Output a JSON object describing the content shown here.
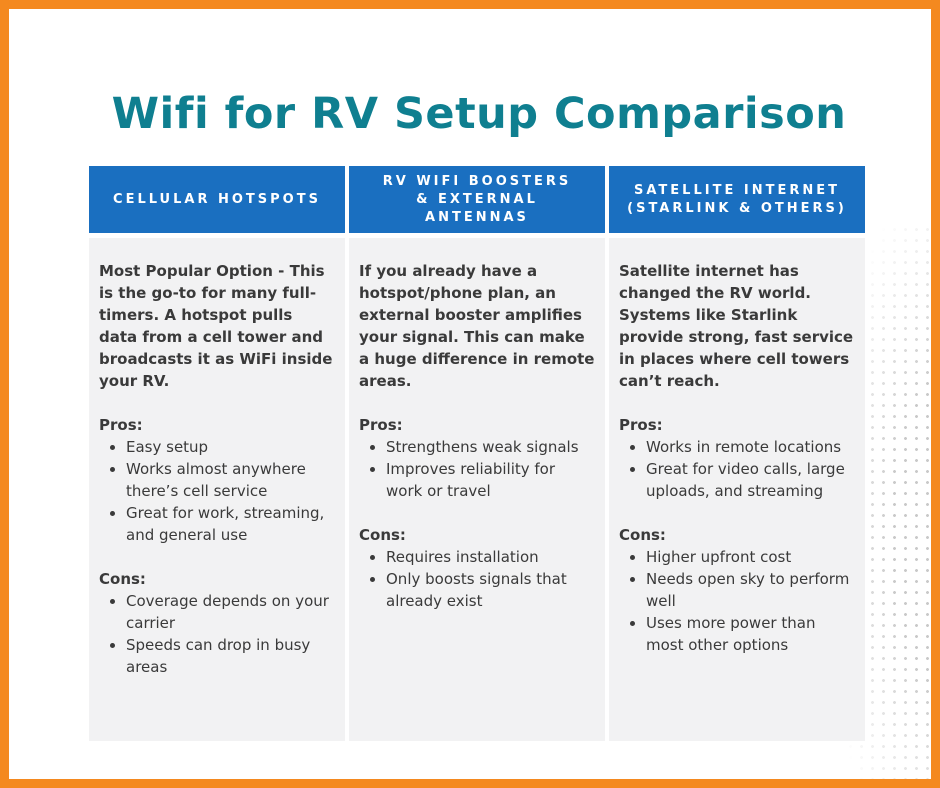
{
  "title": "Wifi for RV Setup Comparison",
  "colors": {
    "border": "#F4891F",
    "title": "#0F7F90",
    "header": "#1A6FC0",
    "body_bg": "#F2F2F3"
  },
  "columns": [
    {
      "header": [
        "CELLULAR HOTSPOTS"
      ],
      "intro": "Most Popular Option - This is the go-to for many full-timers. A hotspot pulls data from a cell tower and broadcasts it as WiFi inside your RV.",
      "pros_label": "Pros:",
      "pros": [
        "Easy setup",
        "Works almost anywhere there’s cell service",
        "Great for work, streaming, and general use"
      ],
      "cons_label": "Cons:",
      "cons": [
        "Coverage depends on your carrier",
        "Speeds can drop in busy areas"
      ]
    },
    {
      "header": [
        "RV WIFI BOOSTERS",
        "& EXTERNAL",
        "ANTENNAS"
      ],
      "intro": "If you already have a hotspot/phone plan, an external booster amplifies your signal. This can make a huge difference in remote areas.",
      "pros_label": "Pros:",
      "pros": [
        "Strengthens weak signals",
        "Improves reliability for work or travel"
      ],
      "cons_label": "Cons:",
      "cons": [
        "Requires installation",
        "Only boosts signals that already exist"
      ]
    },
    {
      "header": [
        "SATELLITE INTERNET",
        "(STARLINK & OTHERS)"
      ],
      "intro": "Satellite internet has changed the RV world. Systems like Starlink provide strong, fast service in places where cell towers can’t reach.",
      "pros_label": "Pros:",
      "pros": [
        "Works in remote locations",
        "Great for video calls, large uploads, and streaming"
      ],
      "cons_label": "Cons:",
      "cons": [
        "Higher upfront cost",
        "Needs open sky to perform well",
        "Uses more power than most other options"
      ]
    }
  ]
}
